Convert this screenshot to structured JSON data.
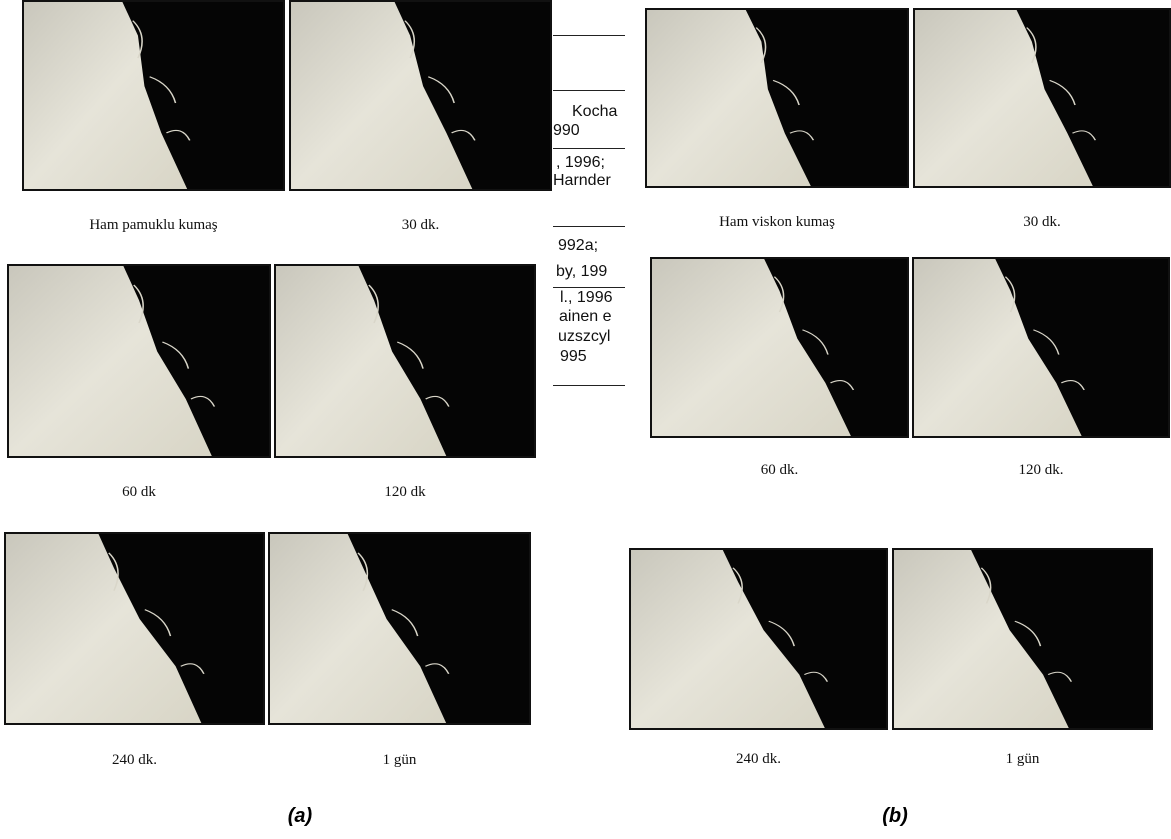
{
  "figure_a": {
    "captions": [
      "Ham pamuklu kumaş",
      "30 dk.",
      "60 dk",
      "120 dk",
      "240 dk.",
      "1 gün"
    ],
    "label": "(a)"
  },
  "figure_b": {
    "captions": [
      "Ham viskon kumaş",
      "30 dk.",
      "60 dk.",
      "120 dk.",
      "240 dk.",
      "1 gün"
    ],
    "label": "(b)"
  },
  "background_text": [
    "Kocha",
    "990",
    ", 1996;",
    "Harnder",
    "992a;",
    "by, 199",
    "l., 1996",
    "ainen e",
    "uzszcyl",
    "995"
  ]
}
